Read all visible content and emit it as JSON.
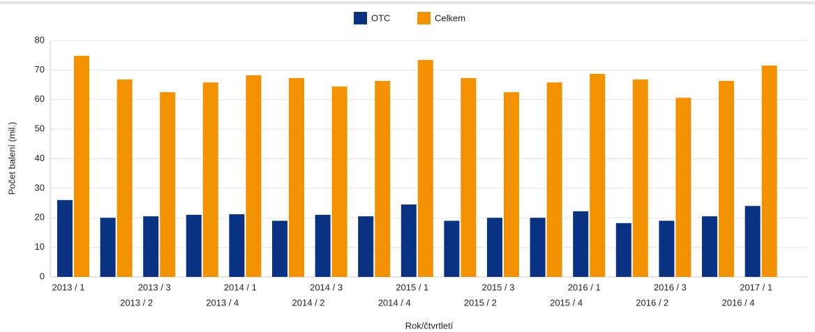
{
  "chart_data": {
    "type": "bar",
    "categories": [
      "2013 / 1",
      "2013 / 2",
      "2013 / 3",
      "2013 / 4",
      "2014 / 1",
      "2014 / 2",
      "2014 / 3",
      "2014 / 4",
      "2015 / 1",
      "2015 / 2",
      "2015 / 3",
      "2015 / 4",
      "2016 / 1",
      "2016 / 2",
      "2016 / 3",
      "2016 / 4",
      "2017 / 1"
    ],
    "series": [
      {
        "name": "OTC",
        "color": "#0a3282",
        "values": [
          26,
          20,
          20.5,
          21,
          21.2,
          19,
          21,
          20.5,
          24.5,
          19,
          20,
          20,
          22.2,
          18.2,
          19,
          20.5,
          24
        ]
      },
      {
        "name": "Celkem",
        "color": "#f39200",
        "values": [
          74.8,
          66.8,
          62.5,
          65.8,
          68.2,
          67.3,
          64.4,
          66.3,
          73.4,
          67.3,
          62.5,
          65.8,
          68.7,
          66.8,
          60.6,
          66.3,
          71.5
        ]
      }
    ],
    "ylim": [
      0,
      80
    ],
    "yticks": [
      0,
      10,
      20,
      30,
      40,
      50,
      60,
      70,
      80
    ],
    "ylabel": "Počet balení (mil.)",
    "xlabel": "Rok/čtvrtletí",
    "grid": true,
    "legend": "top"
  }
}
